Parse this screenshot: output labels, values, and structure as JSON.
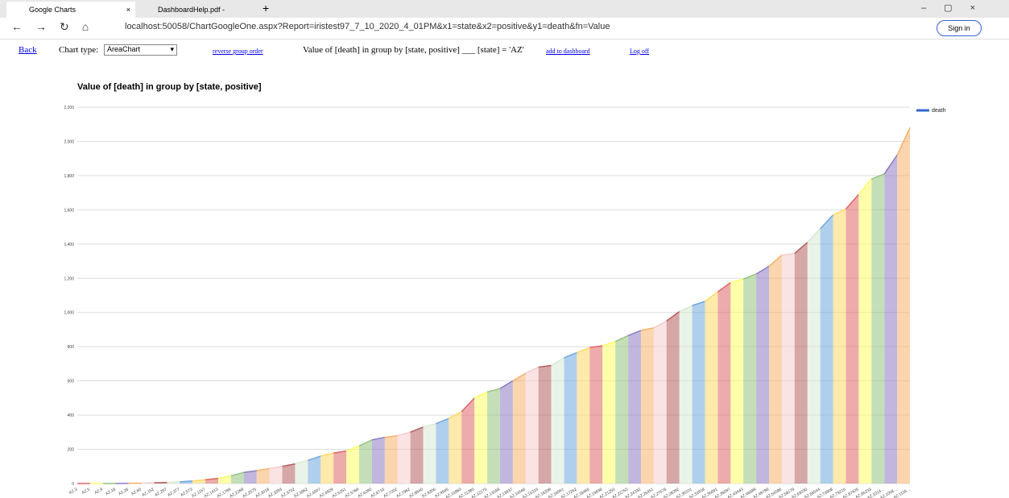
{
  "browser": {
    "tabs": [
      {
        "title": "Google Charts"
      },
      {
        "title": "DashboardHelp.pdf - OneDrive"
      }
    ],
    "address": "localhost:50058/ChartGoogleOne.aspx?Report=iristest97_7_10_2020_4_01PM&x1=state&x2=positive&y1=death&fn=Value",
    "sign_in": "Sign in"
  },
  "toolbar": {
    "back": "Back",
    "chart_type_label": "Chart type:",
    "chart_type_value": "AreaChart",
    "reverse": "reverse group order",
    "description": "Value of [death] in group by [state, positive] ___ [state] = 'AZ'",
    "add": "add to dashboard",
    "logoff": "Log off"
  },
  "chart_data": {
    "type": "area",
    "title": "Value of [death] in group by [state, positive]",
    "categories": [
      "AZ,3",
      "AZ,5",
      "AZ,9",
      "AZ,18",
      "AZ,28",
      "AZ,60",
      "AZ,152",
      "AZ,297",
      "AZ,377",
      "AZ,573",
      "AZ,1157",
      "AZ,1413",
      "AZ,1769",
      "AZ,2269",
      "AZ,2575",
      "AZ,3018",
      "AZ,3393",
      "AZ,3702",
      "AZ,3962",
      "AZ,4507",
      "AZ,4929",
      "AZ,5251",
      "AZ,5769",
      "AZ,6280",
      "AZ,6716",
      "AZ,7202",
      "AZ,7962",
      "AZ,8640",
      "AZ,9305",
      "AZ,9945",
      "AZ,10960",
      "AZ,11380",
      "AZ,12176",
      "AZ,13169",
      "AZ,13937",
      "AZ,14566",
      "AZ,15315",
      "AZ,16339",
      "AZ,16561",
      "AZ,17262",
      "AZ,18465",
      "AZ,19936",
      "AZ,21250",
      "AZ,22753",
      "AZ,24332",
      "AZ,25451",
      "AZ,27678",
      "AZ,28392",
      "AZ,30101",
      "AZ,32918",
      "AZ,35691",
      "AZ,39097",
      "AZ,43443",
      "AZ,46689",
      "AZ,49798",
      "AZ,54586",
      "AZ,58179",
      "AZ,63030",
      "AZ,66544",
      "AZ,73908",
      "AZ,79215",
      "AZ,87425",
      "AZ,95233",
      "AZ,1014...",
      "AZ,1058...",
      "AZ,1116..."
    ],
    "series": [
      {
        "name": "death",
        "color": "#3366cc",
        "values": [
          0,
          0,
          0,
          0,
          1,
          2,
          4,
          6,
          10,
          15,
          22,
          30,
          45,
          65,
          75,
          88,
          100,
          115,
          135,
          160,
          178,
          190,
          220,
          255,
          270,
          280,
          300,
          330,
          350,
          380,
          420,
          500,
          535,
          555,
          600,
          645,
          680,
          690,
          735,
          765,
          795,
          805,
          830,
          865,
          895,
          910,
          950,
          1005,
          1040,
          1065,
          1120,
          1175,
          1195,
          1225,
          1270,
          1335,
          1345,
          1410,
          1490,
          1570,
          1605,
          1690,
          1780,
          1810,
          1920,
          2080
        ]
      }
    ],
    "segment_colors": [
      "#e06666",
      "#ffff66",
      "#93c47d",
      "#8e7cc3",
      "#f6b26b",
      "#f4cccc",
      "#b45f5f",
      "#d9ead3",
      "#6fa8dc",
      "#ffd966"
    ],
    "ylim": [
      0,
      2200
    ],
    "yticks": [
      0,
      200,
      400,
      600,
      800,
      {
        "value": 1000,
        "label": "1,000"
      },
      {
        "value": 1200,
        "label": "1,200"
      },
      {
        "value": 1400,
        "label": "1,400"
      },
      {
        "value": 1600,
        "label": "1,600"
      },
      {
        "value": 1800,
        "label": "1,800"
      },
      {
        "value": 2000,
        "label": "2,000"
      },
      {
        "value": 2200,
        "label": "2,200"
      }
    ],
    "grid": true,
    "legend": "right"
  }
}
